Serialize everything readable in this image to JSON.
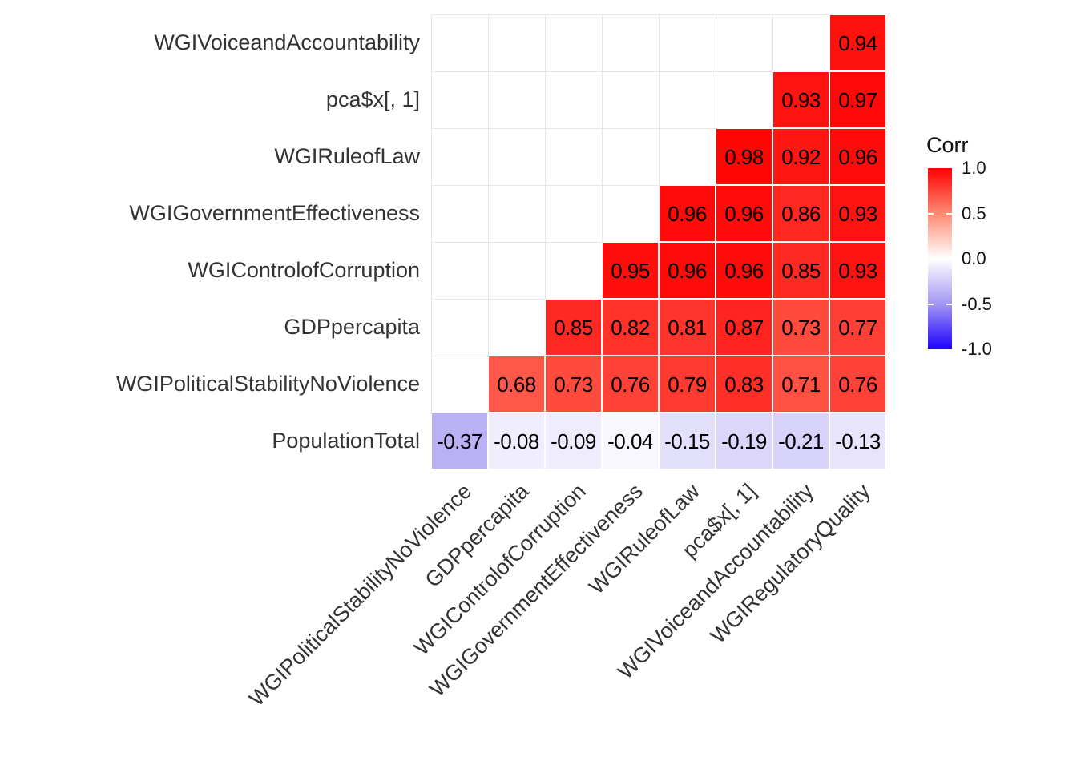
{
  "chart_data": {
    "type": "heatmap",
    "title": "",
    "columns": [
      "WGIPoliticalStabilityNoViolence",
      "GDPpercapita",
      "WGIControlofCorruption",
      "WGIGovernmentEffectiveness",
      "WGIRuleofLaw",
      "pca$x[, 1]",
      "WGIVoiceandAccountability",
      "WGIRegulatoryQuality"
    ],
    "rows": [
      "WGIVoiceandAccountability",
      "pca$x[, 1]",
      "WGIRuleofLaw",
      "WGIGovernmentEffectiveness",
      "WGIControlofCorruption",
      "GDPpercapita",
      "WGIPoliticalStabilityNoViolence",
      "PopulationTotal"
    ],
    "matrix": [
      [
        null,
        null,
        null,
        null,
        null,
        null,
        null,
        0.94
      ],
      [
        null,
        null,
        null,
        null,
        null,
        null,
        0.93,
        0.97
      ],
      [
        null,
        null,
        null,
        null,
        null,
        0.98,
        0.92,
        0.96
      ],
      [
        null,
        null,
        null,
        null,
        0.96,
        0.96,
        0.86,
        0.93
      ],
      [
        null,
        null,
        null,
        0.95,
        0.96,
        0.96,
        0.85,
        0.93
      ],
      [
        null,
        null,
        0.85,
        0.82,
        0.81,
        0.87,
        0.73,
        0.77
      ],
      [
        null,
        0.68,
        0.73,
        0.76,
        0.79,
        0.83,
        0.71,
        0.76
      ],
      [
        -0.37,
        -0.08,
        -0.09,
        -0.04,
        -0.15,
        -0.19,
        -0.21,
        -0.13
      ]
    ],
    "value_decimals": 2,
    "legend": {
      "title": "Corr",
      "position": "right",
      "min": -1,
      "max": 1,
      "tick_labels": [
        "1.0",
        "0.5",
        "0.0",
        "-0.5",
        "-1.0"
      ],
      "tick_values": [
        1,
        0.5,
        0,
        -0.5,
        -1
      ],
      "inner_tick_values": [
        0.5,
        0,
        -0.5
      ]
    },
    "color_scale": {
      "stops": [
        {
          "v": -1.0,
          "color": "#1E00FF"
        },
        {
          "v": -0.5,
          "color": "#A296F2"
        },
        {
          "v": 0.0,
          "color": "#FFFFFF"
        },
        {
          "v": 0.5,
          "color": "#FF8A73"
        },
        {
          "v": 1.0,
          "color": "#FF0000"
        }
      ]
    },
    "style": {
      "grid_on": true,
      "grid_color": "#E7E7E7",
      "panel_background": "#FFFFFF",
      "cell_border_color": "#FFFFFF",
      "axis_text_color": "#333333",
      "cell_text_color": "#000000"
    }
  }
}
